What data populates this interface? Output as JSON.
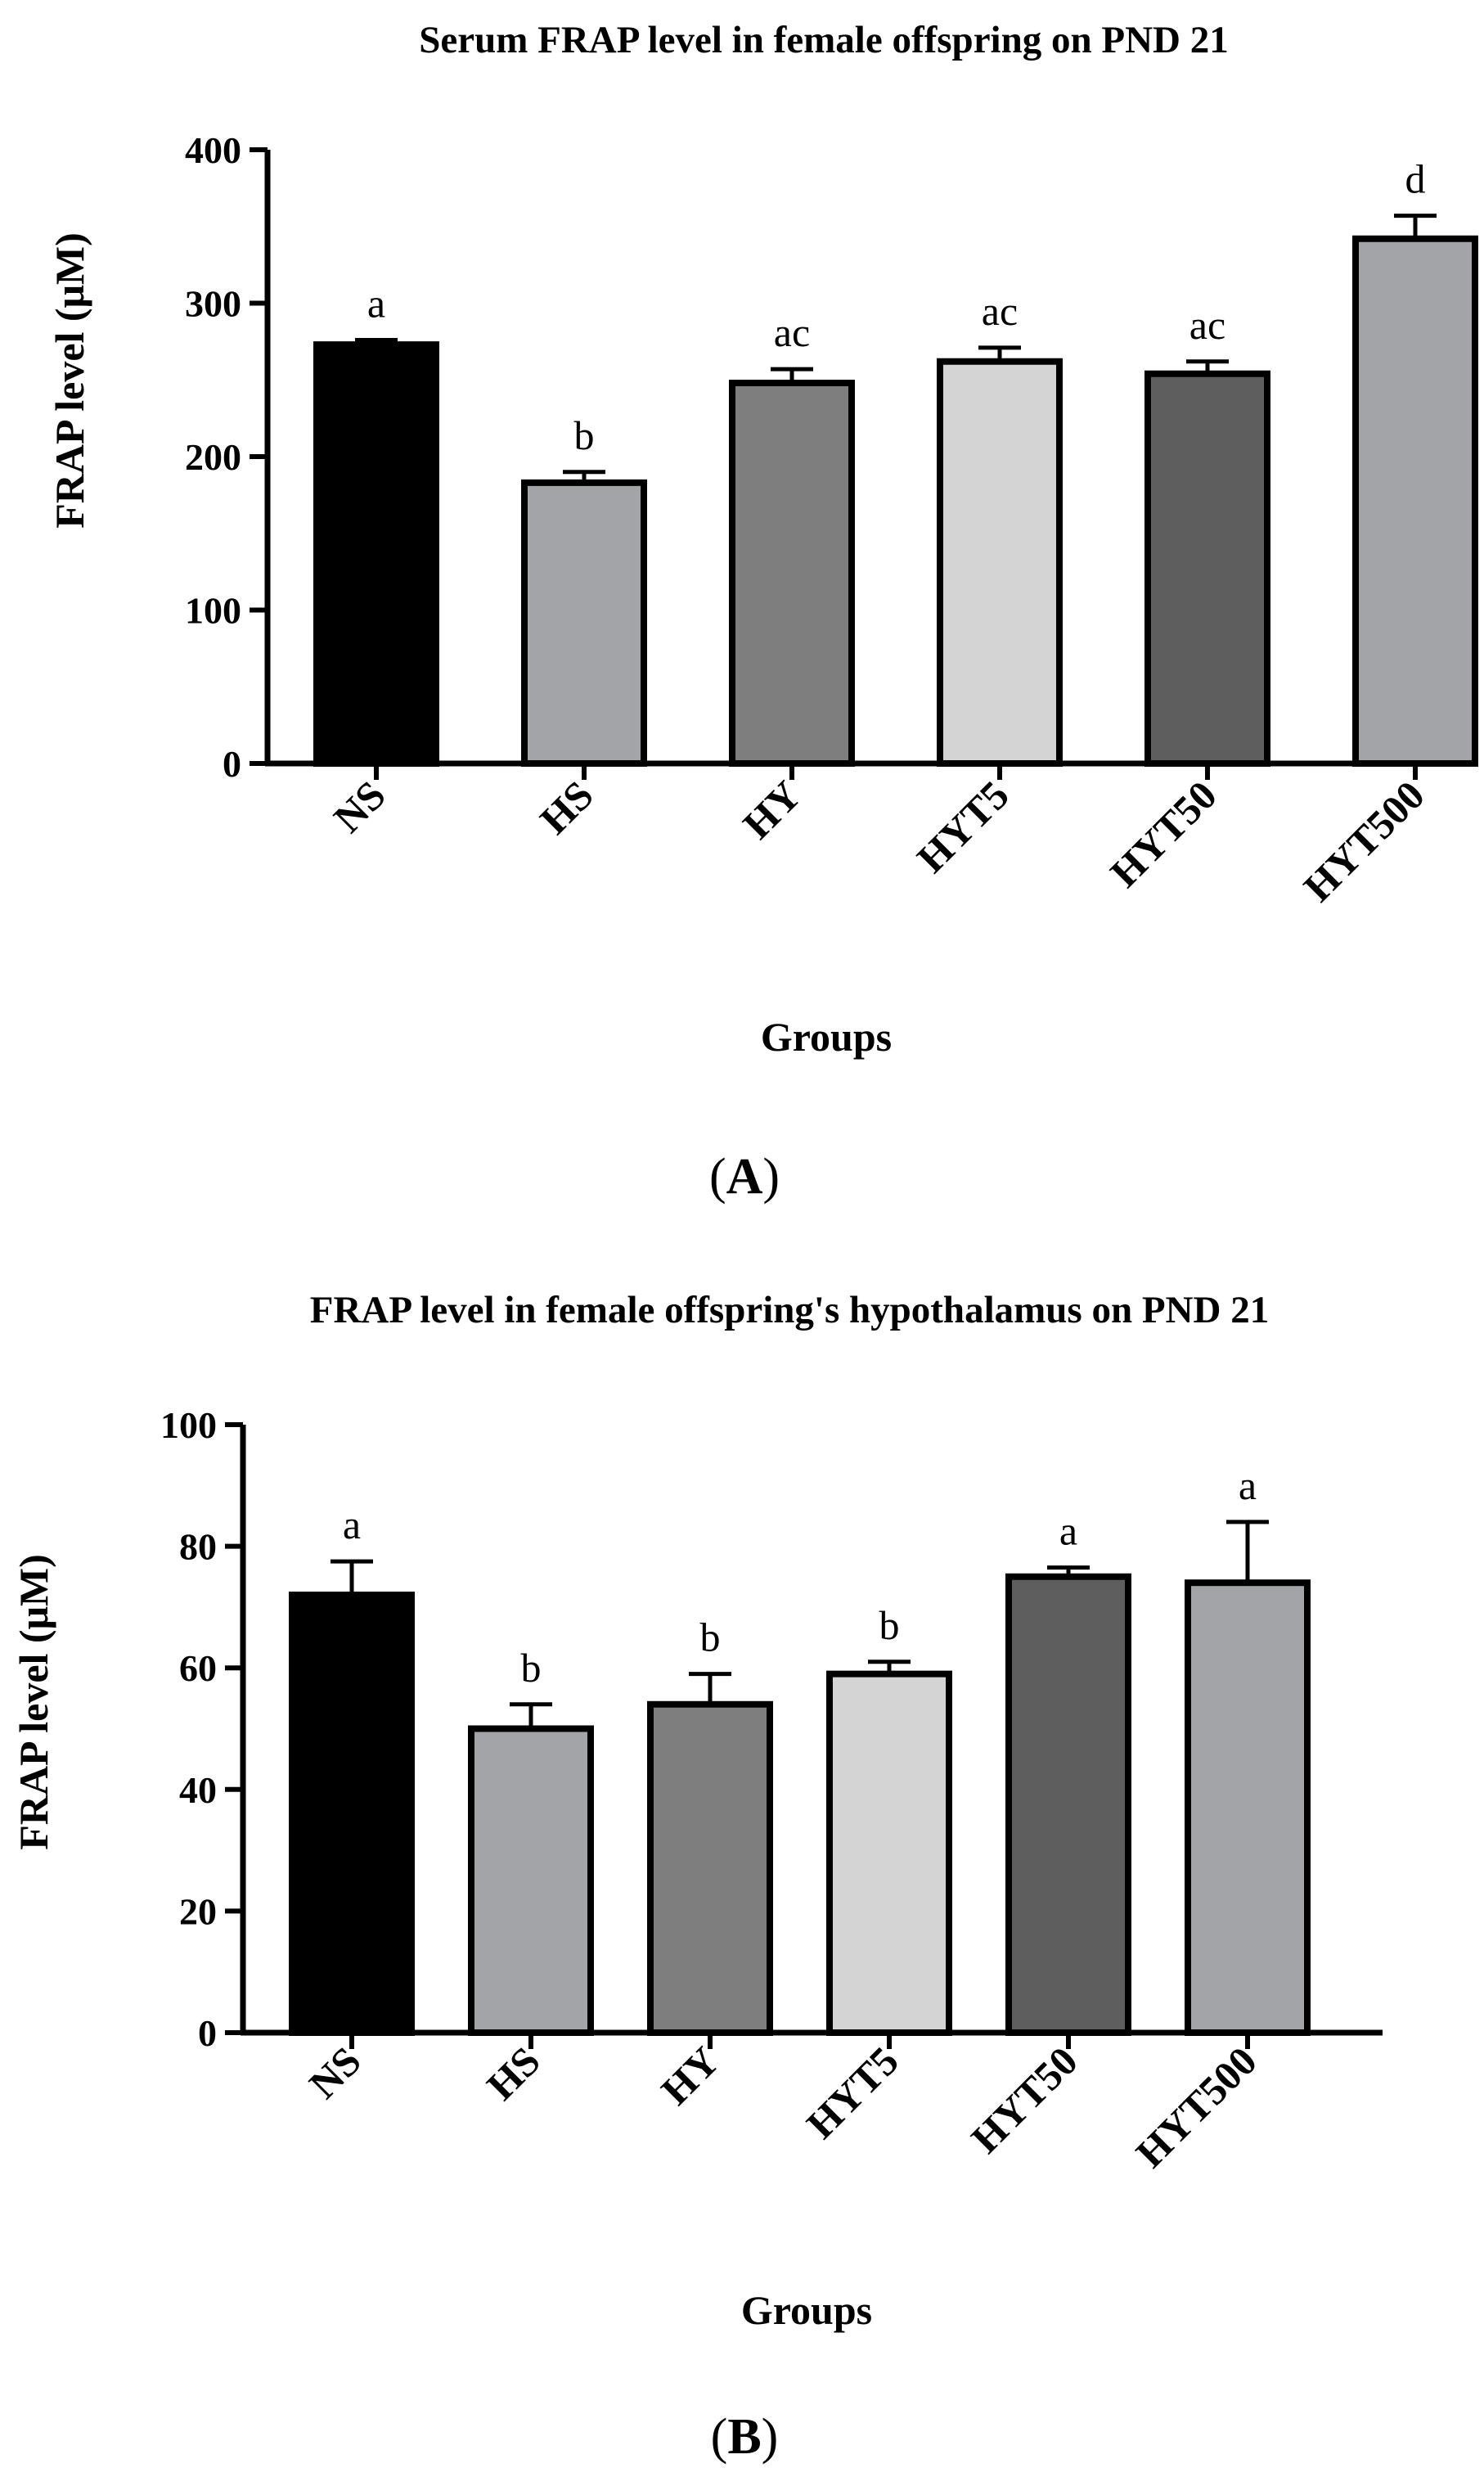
{
  "chart_data": [
    {
      "type": "bar",
      "title": "Serum FRAP level in female offspring on PND 21",
      "xlabel": "Groups",
      "ylabel": "FRAP level (μM)",
      "ylim": [
        0,
        400
      ],
      "yticks": [
        0,
        100,
        200,
        300,
        400
      ],
      "categories": [
        "NS",
        "HS",
        "HY",
        "HYT5",
        "HYT50",
        "HYT500"
      ],
      "values": [
        273,
        183,
        248,
        262,
        254,
        342
      ],
      "errors": [
        3,
        7,
        9,
        9,
        8,
        15
      ],
      "labels": [
        "a",
        "b",
        "ac",
        "ac",
        "ac",
        "d"
      ],
      "colors": [
        "#000000",
        "#a3a4a8",
        "#7e7e7e",
        "#d3d4d3",
        "#5d5e5d",
        "#a3a4a8"
      ],
      "tick_rotation": -45,
      "panel_label": {
        "open": "(",
        "letter": "A",
        "close": ")"
      }
    },
    {
      "type": "bar",
      "title": "FRAP level in female offspring's hypothalamus on PND 21",
      "xlabel": "Groups",
      "ylabel": "FRAP level (μM)",
      "ylim": [
        0,
        100
      ],
      "yticks": [
        0,
        20,
        40,
        60,
        80,
        100
      ],
      "categories": [
        "NS",
        "HS",
        "HY",
        "HYT5",
        "HYT50",
        "HYT500"
      ],
      "values": [
        72,
        50,
        54,
        59,
        75,
        74
      ],
      "errors": [
        5.5,
        4,
        5,
        2,
        1.5,
        10
      ],
      "labels": [
        "a",
        "b",
        "b",
        "b",
        "a",
        "a"
      ],
      "colors": [
        "#000000",
        "#a3a4a8",
        "#7e7e7e",
        "#d3d4d3",
        "#5d5e5d",
        "#a3a4a8"
      ],
      "tick_rotation": -45,
      "panel_label": {
        "open": "(",
        "letter": "B",
        "close": ")"
      }
    }
  ]
}
